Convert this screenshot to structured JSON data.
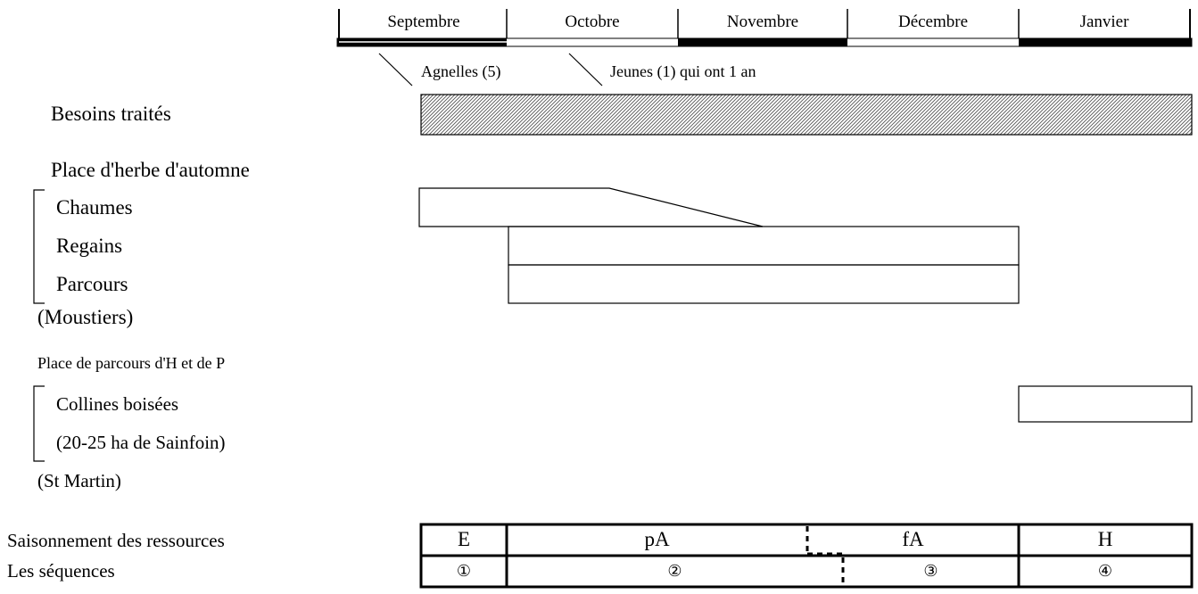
{
  "months": [
    "Septembre",
    "Octobre",
    "Novembre",
    "Décembre",
    "Janvier"
  ],
  "annotations": {
    "agnelles": "Agnelles (5)",
    "jeunes": "Jeunes (1) qui ont 1 an"
  },
  "rows": {
    "besoins": "Besoins traités",
    "herbe_automne": "Place d'herbe d'automne",
    "chaumes": "Chaumes",
    "regains": "Regains",
    "parcours": "Parcours",
    "moustiers": "(Moustiers)",
    "parcours_hp": "Place de parcours d'H et de P",
    "collines": "Collines boisées",
    "sainfoin": "(20-25 ha de Sainfoin)",
    "st_martin": "(St Martin)",
    "saisonnement": "Saisonnement des ressources",
    "sequences": "Les séquences"
  },
  "seasons": [
    "E",
    "pA",
    "fA",
    "H"
  ],
  "sequence_numbers": [
    "①",
    "②",
    "③",
    "④"
  ]
}
